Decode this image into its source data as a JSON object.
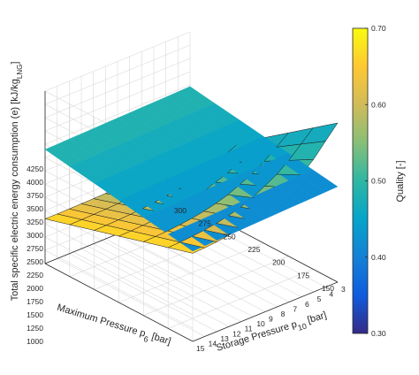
{
  "chart_data": {
    "type": "surface3d",
    "zlabel": "Total specific electric energy consumption (e) [kJ/kg",
    "zlabel_sub": "LNG",
    "zlabel_end": "]",
    "xlabel": "Maximum Pressure p",
    "xlabel_sub": "6",
    "xlabel_end": " [bar]",
    "ylabel": "Storage Pressure p",
    "ylabel_sub": "10",
    "ylabel_end": " [bar]",
    "colorbar_label": "Quality [-]",
    "colorbar_range": [
      0.3,
      0.7
    ],
    "colorbar_ticks": [
      "0.30",
      "0.40",
      "0.50",
      "0.60",
      "0.70"
    ],
    "x_ticks": [
      "300",
      "275",
      "250",
      "225",
      "200",
      "175",
      "150"
    ],
    "y_ticks": [
      "15",
      "14",
      "13",
      "12",
      "11",
      "10",
      "9",
      "8",
      "7",
      "6",
      "5",
      "4",
      "3"
    ],
    "z_ticks": [
      "1000",
      "1250",
      "1500",
      "1750",
      "2000",
      "2250",
      "2500",
      "2750",
      "3000",
      "3250",
      "3500",
      "3750",
      "4000",
      "4250"
    ],
    "xlim": [
      150,
      300
    ],
    "ylim": [
      3,
      15
    ],
    "zlim": [
      1000,
      4250
    ],
    "colormap": [
      "#352a87",
      "#0f5cdd",
      "#1481d6",
      "#06a4ca",
      "#2eb7a4",
      "#87bf77",
      "#d1bb59",
      "#fec832",
      "#f9fb0e"
    ],
    "grid": true,
    "surfaces": [
      {
        "p6": [
          150,
          300
        ],
        "p10": [
          3,
          15
        ],
        "e": [
          [
            2800,
            3220
          ],
          [
            2700,
            3150
          ]
        ],
        "quality_p6": [
          0.41,
          0.49
        ]
      },
      {
        "p6": [
          150,
          175,
          200,
          225,
          250,
          275,
          300
        ],
        "p10": [
          3,
          4,
          5,
          6,
          7,
          8,
          9,
          10,
          11,
          12,
          13,
          14,
          15
        ],
        "e_p6_0": [
          4000,
          3750,
          3500,
          3300,
          3150,
          3000,
          2900,
          2820,
          2760,
          2720,
          2690,
          2670,
          2660
        ],
        "e_p6_1": [
          2250,
          1850
        ],
        "quality_p10": [
          0.67,
          0.46
        ]
      }
    ]
  }
}
